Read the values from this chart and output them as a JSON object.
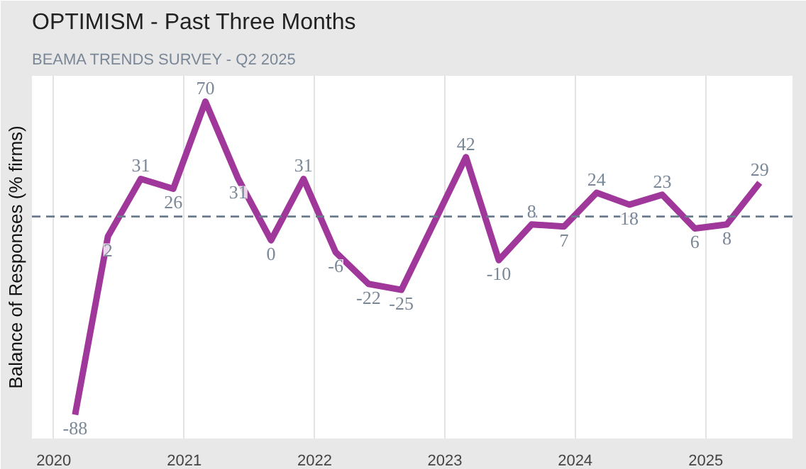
{
  "chart_data": {
    "type": "line",
    "title": "OPTIMISM - Past Three Months",
    "subtitle": "BEAMA TRENDS SURVEY - Q2 2025",
    "ylabel": "Balance of Responses (% firms)",
    "x": [
      "2020-03",
      "2020-06",
      "2020-09",
      "2020-12",
      "2021-03",
      "2021-06",
      "2021-09",
      "2021-12",
      "2022-03",
      "2022-06",
      "2022-09",
      "2023-03",
      "2023-06",
      "2023-09",
      "2023-12",
      "2024-03",
      "2024-06",
      "2024-09",
      "2024-12",
      "2025-03",
      "2025-06"
    ],
    "series": [
      {
        "color": "#a0379a",
        "values": [
          -88,
          2,
          31,
          26,
          70,
          31,
          0,
          31,
          -6,
          -22,
          -25,
          42,
          -10,
          8,
          7,
          24,
          18,
          23,
          6,
          8,
          29
        ]
      }
    ],
    "xlim": [
      "2019-11",
      "2025-09"
    ],
    "xticks": [
      "2020",
      "2021",
      "2022",
      "2023",
      "2024",
      "2025"
    ],
    "ylim": [
      -100,
      83
    ],
    "ref_lines": [
      {
        "axis": "y",
        "value": 12,
        "color": "#6b7a8c",
        "line_style": "dashed"
      }
    ],
    "grid": "x",
    "marker": "none",
    "line_style": "solid",
    "data_labels": true,
    "tick_labels": "x"
  }
}
